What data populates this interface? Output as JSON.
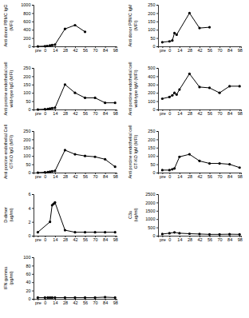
{
  "chart_data": [
    {
      "type": "line",
      "y_label": [
        "Anti donor PBMC IgG",
        "(MFI)"
      ],
      "color": "#000000",
      "marker": "circle",
      "x": [
        -10,
        0,
        3,
        7,
        10,
        14,
        28,
        42,
        56
      ],
      "values": [
        0,
        5,
        10,
        20,
        30,
        40,
        420,
        510,
        350
      ],
      "xlim": [
        -16,
        100
      ],
      "xticks": [
        {
          "value": -10,
          "label": "pre"
        },
        0,
        14,
        28,
        42,
        56,
        70,
        84,
        98
      ],
      "ylim": [
        0,
        1000
      ],
      "yticks": [
        0,
        200,
        400,
        600,
        800,
        1000
      ]
    },
    {
      "type": "line",
      "y_label": [
        "Anti donor PBMC IgM",
        "(MFI)"
      ],
      "color": "#000000",
      "marker": "circle",
      "x": [
        -10,
        0,
        4,
        7,
        10,
        28,
        42,
        56
      ],
      "values": [
        25,
        30,
        35,
        80,
        70,
        200,
        110,
        115
      ],
      "xlim": [
        -16,
        100
      ],
      "xticks": [
        {
          "value": -10,
          "label": "pre"
        },
        0,
        14,
        28,
        42,
        56,
        70,
        84,
        98
      ],
      "ylim": [
        0,
        250
      ],
      "yticks": [
        0,
        50,
        100,
        150,
        200,
        250
      ]
    },
    {
      "type": "line",
      "y_label": [
        "Anti porcine endothelial cell",
        "wild-type IgG (MFI)"
      ],
      "color": "#000000",
      "marker": "circle",
      "x": [
        -10,
        0,
        4,
        7,
        10,
        14,
        28,
        42,
        56,
        70,
        84,
        98
      ],
      "values": [
        0,
        2,
        3,
        5,
        8,
        10,
        150,
        100,
        70,
        70,
        40,
        40
      ],
      "xlim": [
        -16,
        100
      ],
      "xticks": [
        {
          "value": -10,
          "label": "pre"
        },
        0,
        14,
        28,
        42,
        56,
        70,
        84,
        98
      ],
      "ylim": [
        0,
        250
      ],
      "yticks": [
        0,
        50,
        100,
        150,
        200,
        250
      ]
    },
    {
      "type": "line",
      "y_label": [
        "Anti porcine endothelial cell",
        "wild-type IgM (MFI)"
      ],
      "color": "#000000",
      "marker": "circle",
      "x": [
        -10,
        0,
        4,
        7,
        10,
        14,
        28,
        42,
        56,
        70,
        84,
        98
      ],
      "values": [
        130,
        150,
        170,
        200,
        180,
        240,
        430,
        270,
        260,
        200,
        280,
        280
      ],
      "xlim": [
        -16,
        100
      ],
      "xticks": [
        {
          "value": -10,
          "label": "pre"
        },
        0,
        14,
        28,
        42,
        56,
        70,
        84,
        98
      ],
      "ylim": [
        0,
        500
      ],
      "yticks": [
        0,
        100,
        200,
        300,
        400,
        500
      ]
    },
    {
      "type": "line",
      "y_label": [
        "Anti porcine endothelial Cell",
        "GT-KO IgG (MFI)"
      ],
      "color": "#000000",
      "marker": "circle",
      "x": [
        -10,
        0,
        4,
        7,
        10,
        14,
        28,
        42,
        56,
        70,
        84,
        98
      ],
      "values": [
        0,
        2,
        3,
        5,
        8,
        10,
        135,
        110,
        100,
        95,
        80,
        35
      ],
      "xlim": [
        -16,
        100
      ],
      "xticks": [
        {
          "value": -10,
          "label": "pre"
        },
        0,
        14,
        28,
        42,
        56,
        70,
        84,
        98
      ],
      "ylim": [
        0,
        250
      ],
      "yticks": [
        0,
        50,
        100,
        150,
        200,
        250
      ]
    },
    {
      "type": "line",
      "y_label": [
        "Anti porcine endothelial cell",
        "GT-KO IgM (MFI)"
      ],
      "color": "#000000",
      "marker": "circle",
      "x": [
        -10,
        0,
        4,
        7,
        14,
        28,
        42,
        56,
        70,
        84,
        98
      ],
      "values": [
        15,
        15,
        20,
        25,
        95,
        110,
        70,
        55,
        55,
        50,
        30
      ],
      "xlim": [
        -16,
        100
      ],
      "xticks": [
        {
          "value": -10,
          "label": "pre"
        },
        0,
        14,
        28,
        42,
        56,
        70,
        84,
        98
      ],
      "ylim": [
        0,
        250
      ],
      "yticks": [
        0,
        50,
        100,
        150,
        200,
        250
      ]
    },
    {
      "type": "line",
      "y_label": [
        "D-dimer",
        "(ug/ml)"
      ],
      "color": "#000000",
      "marker": "circle",
      "x": [
        -10,
        7,
        10,
        12,
        14,
        28,
        42,
        56,
        70,
        84,
        98
      ],
      "values": [
        0.5,
        2,
        4.4,
        4.6,
        4.8,
        0.8,
        0.5,
        0.5,
        0.5,
        0.5,
        0.5
      ],
      "xlim": [
        -16,
        100
      ],
      "xticks": [
        {
          "value": -10,
          "label": "pre"
        },
        0,
        14,
        28,
        42,
        56,
        70,
        84,
        98
      ],
      "ylim": [
        0,
        6
      ],
      "yticks": [
        0,
        2,
        4,
        6
      ]
    },
    {
      "type": "line",
      "y_label": [
        "C3a",
        "(ug/ml)"
      ],
      "color": "#000000",
      "marker": "circle",
      "x": [
        -10,
        0,
        7,
        14,
        28,
        42,
        56,
        70,
        84,
        98
      ],
      "values": [
        100,
        150,
        200,
        150,
        120,
        100,
        80,
        80,
        90,
        80
      ],
      "xlim": [
        -16,
        100
      ],
      "xticks": [
        {
          "value": -10,
          "label": "pre"
        },
        0,
        14,
        28,
        42,
        56,
        70,
        84,
        98
      ],
      "ylim": [
        0,
        2500
      ],
      "yticks": [
        0,
        500,
        1000,
        1500,
        2000,
        2500
      ]
    },
    {
      "type": "line",
      "y_label": [
        "IFN gamma",
        "(pg/ml)"
      ],
      "color": "#000000",
      "marker": "circle",
      "x": [
        -10,
        0,
        4,
        7,
        10,
        14,
        28,
        42,
        56,
        70,
        84,
        98
      ],
      "values": [
        3,
        3,
        3,
        3,
        3,
        3,
        3,
        3,
        3,
        3,
        4,
        3
      ],
      "xlim": [
        -16,
        100
      ],
      "xticks": [
        {
          "value": -10,
          "label": "pre"
        },
        0,
        14,
        28,
        42,
        56,
        70,
        84,
        98
      ],
      "ylim": [
        0,
        100
      ],
      "yticks": [
        0,
        20,
        40,
        60,
        80,
        100
      ]
    }
  ]
}
